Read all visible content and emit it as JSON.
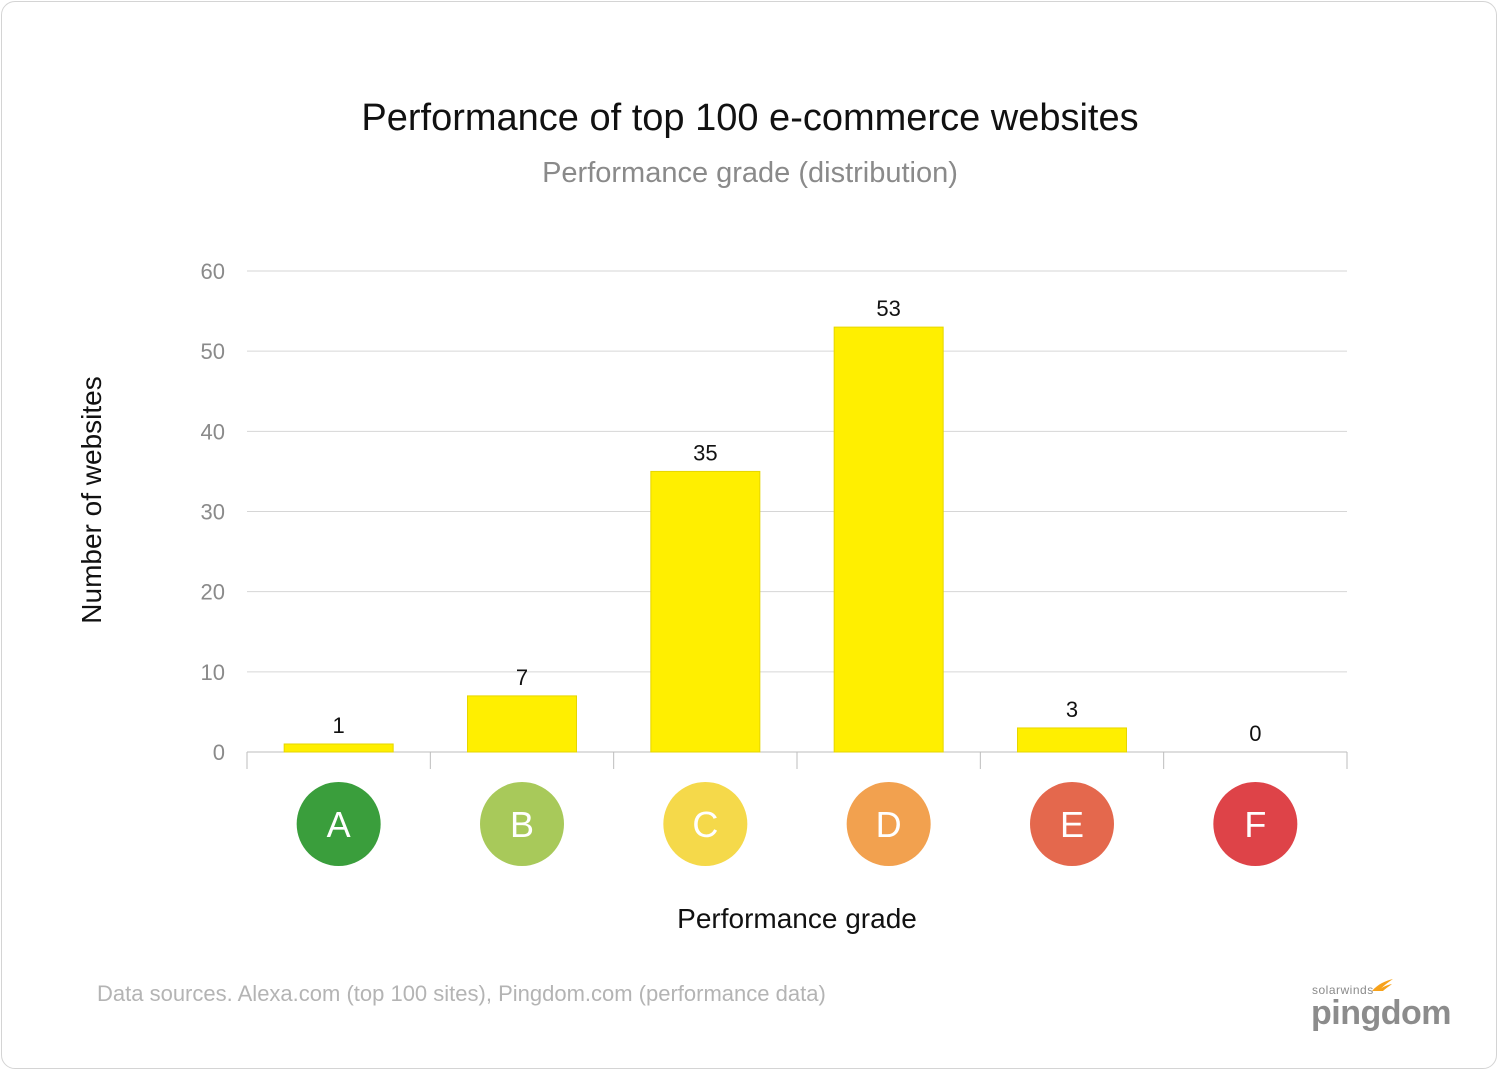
{
  "chart_data": {
    "type": "bar",
    "title": "Performance of top 100 e-commerce websites",
    "subtitle": "Performance grade (distribution)",
    "xlabel": "Performance grade",
    "ylabel": "Number of websites",
    "categories": [
      "A",
      "B",
      "C",
      "D",
      "E",
      "F"
    ],
    "values": [
      1,
      7,
      35,
      53,
      3,
      0
    ],
    "data_labels": [
      "1",
      "7",
      "35",
      "53",
      "3",
      "0"
    ],
    "ylim": [
      0,
      60
    ],
    "yticks": [
      0,
      10,
      20,
      30,
      40,
      50,
      60
    ],
    "grid": true,
    "legend": "none",
    "bar_color": "#ffef00",
    "grade_colors": [
      "#3a9e3c",
      "#a8c95a",
      "#f5d94a",
      "#f2a14f",
      "#e4684d",
      "#de4348"
    ]
  },
  "footer": {
    "source": "Data sources. Alexa.com (top 100 sites), Pingdom.com (performance data)",
    "brand_top": "solarwinds",
    "brand_main": "pingdom",
    "brand_icon": "solarwinds-flame-icon"
  }
}
